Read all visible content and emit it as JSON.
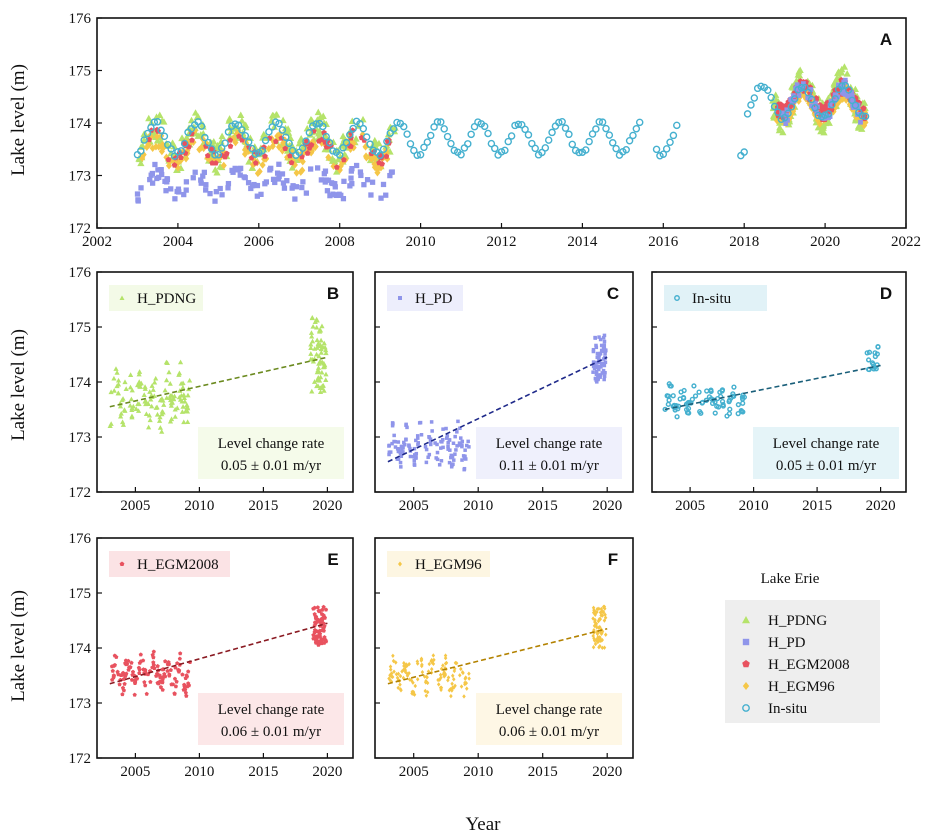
{
  "figure": {
    "x_axis_label": "Year",
    "y_axis_label": "Lake level (m)"
  },
  "legend": {
    "title": "Lake Erie",
    "entries": [
      {
        "label": "H_PDNG",
        "color": "#b5e36a",
        "marker": "triangle"
      },
      {
        "label": "H_PD",
        "color": "#8f95ea",
        "marker": "square"
      },
      {
        "label": "H_EGM2008",
        "color": "#e8525f",
        "marker": "pentagon"
      },
      {
        "label": "H_EGM96",
        "color": "#f5c748",
        "marker": "diamond"
      },
      {
        "label": "In-situ",
        "color": "#45b0cf",
        "marker": "circle"
      }
    ]
  },
  "chart_data": [
    {
      "panel": "A",
      "type": "scatter",
      "title": "A",
      "ylabel": "Lake level (m)",
      "xlim": [
        2002,
        2022
      ],
      "ylim": [
        172,
        176
      ],
      "xticks": [
        2002,
        2004,
        2006,
        2008,
        2010,
        2012,
        2014,
        2016,
        2018,
        2020,
        2022
      ],
      "yticks": [
        172,
        173,
        174,
        175,
        176
      ],
      "series": [
        {
          "name": "H_PDNG",
          "description": "satellite altimetry, 2003-2009 and 2018.7-2021",
          "range_2003_2009": [
            173.0,
            174.4
          ],
          "range_2018_2021": [
            173.8,
            175.2
          ]
        },
        {
          "name": "H_PD",
          "description": "satellite altimetry, roughly 0.8-0.9 m below other series in 2003-2009",
          "range_2003_2009": [
            172.4,
            173.3
          ],
          "range_2018_2021": [
            174.0,
            174.8
          ]
        },
        {
          "name": "H_EGM2008",
          "range_2003_2009": [
            173.2,
            174.0
          ],
          "range_2018_2021": [
            174.0,
            174.8
          ]
        },
        {
          "name": "H_EGM96",
          "range_2003_2009": [
            173.0,
            173.9
          ],
          "range_2018_2021": [
            174.0,
            174.7
          ]
        },
        {
          "name": "In-situ",
          "description": "continuous gauge record 2003-2021 with seasonal cycle, gaps in 2015.5 and 2016.4-2017.9",
          "range": [
            173.2,
            174.8
          ]
        }
      ]
    },
    {
      "panel": "B",
      "type": "scatter",
      "legend_label": "H_PDNG",
      "color": "#b5e36a",
      "xlim": [
        2002,
        2022
      ],
      "ylim": [
        172,
        176
      ],
      "xticks": [
        2005,
        2010,
        2015,
        2020
      ],
      "yticks": [
        172,
        173,
        174,
        175,
        176
      ],
      "points_range": {
        "x": [
          2003,
          2009.3
        ],
        "y": [
          173.0,
          174.4
        ]
      },
      "points_range_2": {
        "x": [
          2018.7,
          2019.9
        ],
        "y": [
          173.8,
          175.2
        ]
      },
      "trend": {
        "x": [
          2003,
          2020
        ],
        "y": [
          173.55,
          174.45
        ]
      },
      "rate_label": "Level change rate",
      "rate_value": "0.05 ± 0.01 m/yr"
    },
    {
      "panel": "C",
      "type": "scatter",
      "legend_label": "H_PD",
      "color": "#8f95ea",
      "xlim": [
        2002,
        2022
      ],
      "ylim": [
        172,
        176
      ],
      "xticks": [
        2005,
        2010,
        2015,
        2020
      ],
      "yticks": [
        172,
        173,
        174,
        175,
        176
      ],
      "points_range": {
        "x": [
          2003,
          2009.3
        ],
        "y": [
          172.4,
          173.3
        ]
      },
      "points_range_2": {
        "x": [
          2018.9,
          2019.9
        ],
        "y": [
          174.0,
          174.85
        ]
      },
      "trend": {
        "x": [
          2003,
          2020
        ],
        "y": [
          172.55,
          174.45
        ]
      },
      "rate_label": "Level change rate",
      "rate_value": "0.11 ± 0.01 m/yr"
    },
    {
      "panel": "D",
      "type": "scatter",
      "legend_label": "In-situ",
      "color": "#45b0cf",
      "xlim": [
        2002,
        2022
      ],
      "ylim": [
        172,
        176
      ],
      "xticks": [
        2005,
        2010,
        2015,
        2020
      ],
      "yticks": [
        172,
        173,
        174,
        175,
        176
      ],
      "points_range": {
        "x": [
          2003,
          2009.3
        ],
        "y": [
          173.3,
          174.0
        ]
      },
      "points_range_2": {
        "x": [
          2018.9,
          2019.8
        ],
        "y": [
          174.2,
          174.7
        ]
      },
      "trend": {
        "x": [
          2003,
          2020
        ],
        "y": [
          173.5,
          174.3
        ]
      },
      "rate_label": "Level change rate",
      "rate_value": "0.05 ± 0.01 m/yr"
    },
    {
      "panel": "E",
      "type": "scatter",
      "legend_label": "H_EGM2008",
      "color": "#e8525f",
      "xlim": [
        2002,
        2022
      ],
      "ylim": [
        172,
        176
      ],
      "xticks": [
        2005,
        2010,
        2015,
        2020
      ],
      "yticks": [
        172,
        173,
        174,
        175,
        176
      ],
      "points_range": {
        "x": [
          2003,
          2009.3
        ],
        "y": [
          173.1,
          173.95
        ]
      },
      "points_range_2": {
        "x": [
          2018.9,
          2019.9
        ],
        "y": [
          174.05,
          174.75
        ]
      },
      "trend": {
        "x": [
          2003,
          2020
        ],
        "y": [
          173.35,
          174.45
        ]
      },
      "rate_label": "Level change rate",
      "rate_value": "0.06 ± 0.01 m/yr"
    },
    {
      "panel": "F",
      "type": "scatter",
      "legend_label": "H_EGM96",
      "color": "#f5c748",
      "xlim": [
        2002,
        2022
      ],
      "ylim": [
        172,
        176
      ],
      "xticks": [
        2005,
        2010,
        2015,
        2020
      ],
      "yticks": [
        172,
        173,
        174,
        175,
        176
      ],
      "points_range": {
        "x": [
          2003,
          2009.3
        ],
        "y": [
          173.1,
          173.9
        ]
      },
      "points_range_2": {
        "x": [
          2018.9,
          2019.9
        ],
        "y": [
          174.0,
          174.75
        ]
      },
      "trend": {
        "x": [
          2003,
          2020
        ],
        "y": [
          173.35,
          174.35
        ]
      },
      "rate_label": "Level change rate",
      "rate_value": "0.06 ± 0.01 m/yr"
    }
  ]
}
